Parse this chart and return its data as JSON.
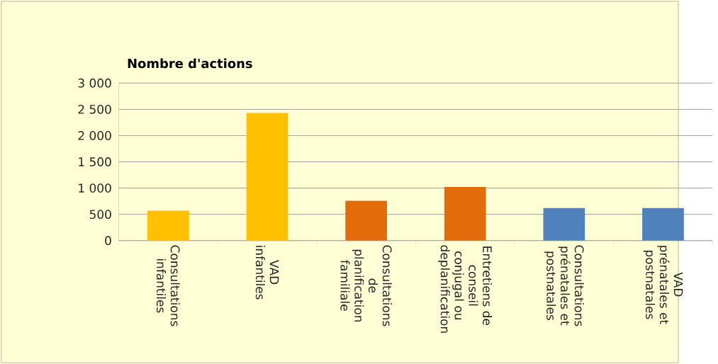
{
  "chart_data": {
    "type": "bar",
    "title": "Nombre d'actions",
    "categories": [
      "Consultations infantiles",
      "VAD infantiles",
      "Consultations de planification familiale",
      "Entretiens de conseil conjugal ou deplanification",
      "Consultations prénatales et postnatales",
      "VAD prénatales et postnatales"
    ],
    "values": [
      570,
      2430,
      760,
      1020,
      620,
      620
    ],
    "colors": [
      "#ffc000",
      "#ffc000",
      "#e36c0a",
      "#e36c0a",
      "#4f81bd",
      "#4f81bd"
    ],
    "ylim": [
      0,
      3000
    ],
    "yticks": [
      0,
      500,
      {
        "value": 1000,
        "label": "1 000"
      },
      {
        "value": 1500,
        "label": "1 500"
      },
      {
        "value": 2000,
        "label": "2 000"
      },
      {
        "value": 2500,
        "label": "2 500"
      },
      {
        "value": 3000,
        "label": "3 000"
      }
    ],
    "grid": "y",
    "legend": false
  }
}
